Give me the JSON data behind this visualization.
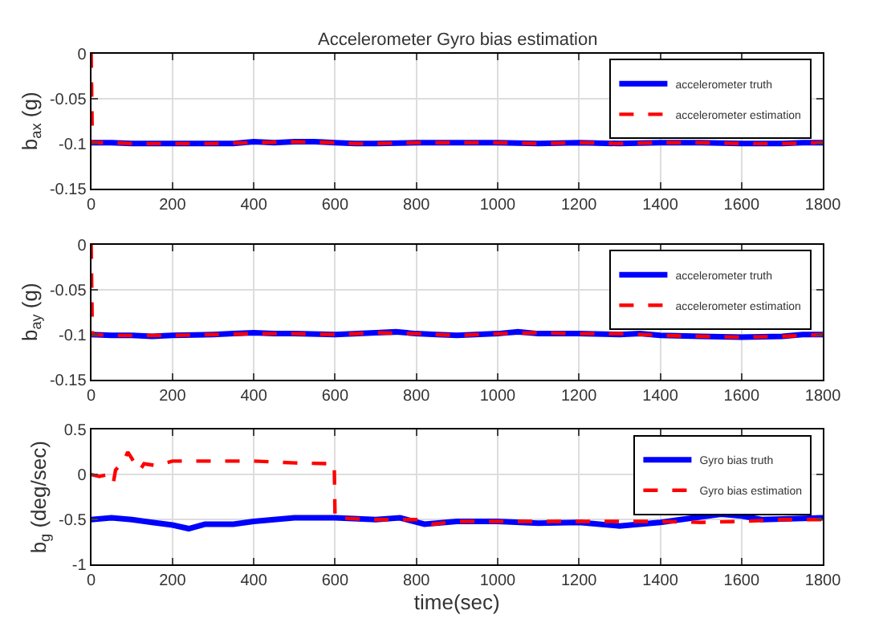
{
  "chart_data": [
    {
      "type": "line",
      "title": "Accelerometer Gyro bias estimation",
      "ylabel": "b$_{ax}$ (g)",
      "xlim": [
        0,
        1800
      ],
      "xticks": [
        0,
        200,
        400,
        600,
        800,
        1000,
        1200,
        1400,
        1600,
        1800
      ],
      "ylim": [
        -0.15,
        0
      ],
      "yticks": [
        -0.15,
        -0.1,
        -0.05,
        0
      ],
      "grid": true,
      "legend": "top right",
      "series": [
        {
          "name": "accelerometer truth",
          "color": "#0000ff",
          "line_style": "solid",
          "x": [
            0,
            50,
            100,
            150,
            200,
            300,
            350,
            400,
            450,
            500,
            550,
            600,
            650,
            700,
            800,
            900,
            1000,
            1100,
            1200,
            1300,
            1400,
            1500,
            1600,
            1700,
            1750,
            1800
          ],
          "values": [
            -0.099,
            -0.099,
            -0.1,
            -0.1,
            -0.1,
            -0.1,
            -0.1,
            -0.098,
            -0.099,
            -0.098,
            -0.098,
            -0.099,
            -0.1,
            -0.1,
            -0.099,
            -0.099,
            -0.099,
            -0.1,
            -0.099,
            -0.1,
            -0.099,
            -0.099,
            -0.1,
            -0.1,
            -0.099,
            -0.099
          ]
        },
        {
          "name": "accelerometer estimation",
          "color": "#ff0000",
          "line_style": "dashed",
          "x": [
            0,
            3,
            6,
            50,
            100,
            200,
            300,
            400,
            500,
            600,
            650,
            700,
            800,
            900,
            1000,
            1100,
            1200,
            1300,
            1400,
            1500,
            1600,
            1700,
            1800
          ],
          "values": [
            0,
            -0.1,
            -0.099,
            -0.099,
            -0.1,
            -0.1,
            -0.1,
            -0.099,
            -0.098,
            -0.099,
            -0.1,
            -0.1,
            -0.099,
            -0.099,
            -0.099,
            -0.1,
            -0.099,
            -0.1,
            -0.099,
            -0.099,
            -0.1,
            -0.1,
            -0.099
          ]
        }
      ]
    },
    {
      "type": "line",
      "ylabel": "b$_{ay}$ (g)",
      "xlim": [
        0,
        1800
      ],
      "xticks": [
        0,
        200,
        400,
        600,
        800,
        1000,
        1200,
        1400,
        1600,
        1800
      ],
      "ylim": [
        -0.15,
        0
      ],
      "yticks": [
        -0.15,
        -0.1,
        -0.05,
        0
      ],
      "grid": true,
      "legend": "top right",
      "series": [
        {
          "name": "accelerometer truth",
          "color": "#0000ff",
          "line_style": "solid",
          "x": [
            0,
            50,
            100,
            150,
            200,
            300,
            350,
            400,
            450,
            500,
            600,
            700,
            750,
            800,
            850,
            900,
            1000,
            1050,
            1100,
            1200,
            1300,
            1350,
            1400,
            1500,
            1600,
            1700,
            1750,
            1800
          ],
          "values": [
            -0.1,
            -0.101,
            -0.101,
            -0.102,
            -0.101,
            -0.1,
            -0.099,
            -0.098,
            -0.099,
            -0.099,
            -0.1,
            -0.098,
            -0.097,
            -0.099,
            -0.1,
            -0.101,
            -0.099,
            -0.097,
            -0.099,
            -0.099,
            -0.1,
            -0.099,
            -0.101,
            -0.102,
            -0.103,
            -0.102,
            -0.1,
            -0.1
          ]
        },
        {
          "name": "accelerometer estimation",
          "color": "#ff0000",
          "line_style": "dashed",
          "x": [
            0,
            3,
            6,
            50,
            100,
            200,
            300,
            400,
            500,
            600,
            700,
            800,
            900,
            1000,
            1100,
            1200,
            1300,
            1400,
            1500,
            1600,
            1700,
            1800
          ],
          "values": [
            0,
            -0.1,
            -0.1,
            -0.101,
            -0.101,
            -0.101,
            -0.1,
            -0.099,
            -0.099,
            -0.1,
            -0.098,
            -0.099,
            -0.101,
            -0.099,
            -0.098,
            -0.099,
            -0.099,
            -0.101,
            -0.102,
            -0.103,
            -0.102,
            -0.1
          ]
        }
      ]
    },
    {
      "type": "line",
      "xlabel": "time(sec)",
      "ylabel": "b$_{g}$ (deg/sec)",
      "xlim": [
        0,
        1800
      ],
      "xticks": [
        0,
        200,
        400,
        600,
        800,
        1000,
        1200,
        1400,
        1600,
        1800
      ],
      "ylim": [
        -1,
        0.5
      ],
      "yticks": [
        -1,
        -0.5,
        0,
        0.5
      ],
      "grid": true,
      "legend": "top right",
      "series": [
        {
          "name": "Gyro bias truth",
          "color": "#0000ff",
          "line_style": "solid",
          "x": [
            0,
            50,
            100,
            150,
            200,
            240,
            280,
            350,
            400,
            450,
            500,
            600,
            700,
            760,
            820,
            900,
            1000,
            1100,
            1200,
            1300,
            1400,
            1450,
            1550,
            1600,
            1650,
            1800
          ],
          "values": [
            -0.5,
            -0.48,
            -0.5,
            -0.53,
            -0.56,
            -0.6,
            -0.55,
            -0.55,
            -0.52,
            -0.5,
            -0.48,
            -0.48,
            -0.5,
            -0.48,
            -0.55,
            -0.52,
            -0.52,
            -0.54,
            -0.53,
            -0.57,
            -0.53,
            -0.5,
            -0.44,
            -0.46,
            -0.5,
            -0.48
          ]
        },
        {
          "name": "Gyro bias estimation",
          "color": "#ff0000",
          "line_style": "dashed",
          "x": [
            0,
            20,
            40,
            45,
            55,
            60,
            80,
            90,
            100,
            110,
            120,
            130,
            160,
            200,
            300,
            400,
            500,
            598,
            600,
            700,
            800,
            840,
            900,
            1000,
            1100,
            1200,
            1300,
            1400,
            1500,
            1600,
            1700,
            1800
          ],
          "values": [
            0,
            -0.02,
            0,
            -0.08,
            -0.08,
            0.05,
            0.15,
            0.25,
            0.18,
            0.1,
            0.05,
            0.12,
            0.1,
            0.15,
            0.15,
            0.15,
            0.13,
            0.12,
            -0.48,
            -0.5,
            -0.5,
            -0.55,
            -0.52,
            -0.52,
            -0.52,
            -0.52,
            -0.52,
            -0.52,
            -0.53,
            -0.52,
            -0.5,
            -0.5
          ]
        }
      ]
    }
  ]
}
